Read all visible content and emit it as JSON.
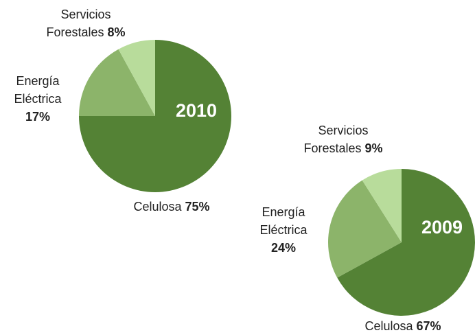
{
  "chart_data": [
    {
      "type": "pie",
      "title": "2010",
      "categories": [
        "Celulosa",
        "Energía Eléctrica",
        "Servicios Forestales"
      ],
      "values": [
        75,
        17,
        8
      ],
      "value_labels": [
        "75%",
        "17%",
        "8%"
      ],
      "colors": [
        "#548235",
        "#8cb46a",
        "#b8dc9b"
      ]
    },
    {
      "type": "pie",
      "title": "2009",
      "categories": [
        "Celulosa",
        "Energía Eléctrica",
        "Servicios Forestales"
      ],
      "values": [
        67,
        24,
        9
      ],
      "value_labels": [
        "67%",
        "24%",
        "9%"
      ],
      "colors": [
        "#548235",
        "#8cb46a",
        "#b8dc9b"
      ]
    }
  ]
}
